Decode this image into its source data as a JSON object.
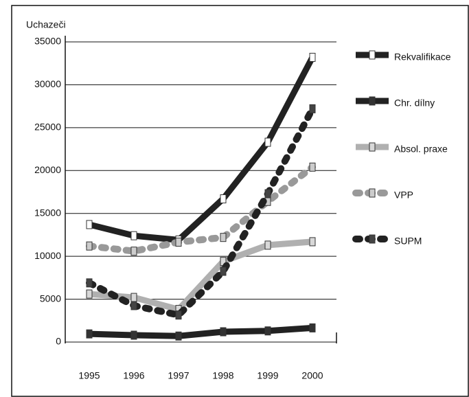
{
  "chart_data": {
    "type": "line",
    "y_label": "Uchazeči",
    "categories": [
      "1995",
      "1996",
      "1997",
      "1998",
      "1999",
      "2000"
    ],
    "ylim": [
      0,
      35000
    ],
    "yticks": [
      0,
      5000,
      10000,
      15000,
      20000,
      25000,
      30000,
      35000
    ],
    "grid": true,
    "legend": "right",
    "series": [
      {
        "name": "Rekvalifikace",
        "color": "#222222",
        "marker_color": "#ffffff",
        "line_style": "solid",
        "values": [
          13700,
          12400,
          11900,
          16700,
          23300,
          33200
        ]
      },
      {
        "name": "Chr. dílny",
        "color": "#222222",
        "marker_color": "#333333",
        "line_style": "solid",
        "values": [
          950,
          800,
          700,
          1200,
          1300,
          1650
        ]
      },
      {
        "name": "Absol. praxe",
        "color": "#b0b0b0",
        "marker_color": "#d8d8d8",
        "line_style": "solid",
        "values": [
          5600,
          5200,
          3800,
          9400,
          11300,
          11700
        ]
      },
      {
        "name": "VPP",
        "color": "#999999",
        "marker_color": "#cccccc",
        "line_style": "dotted",
        "values": [
          11200,
          10600,
          11650,
          12200,
          16400,
          20400
        ]
      },
      {
        "name": "SUPM",
        "color": "#222222",
        "marker_color": "#444444",
        "line_style": "dotted",
        "values": [
          6900,
          4250,
          3150,
          8250,
          17300,
          27200
        ]
      }
    ]
  }
}
